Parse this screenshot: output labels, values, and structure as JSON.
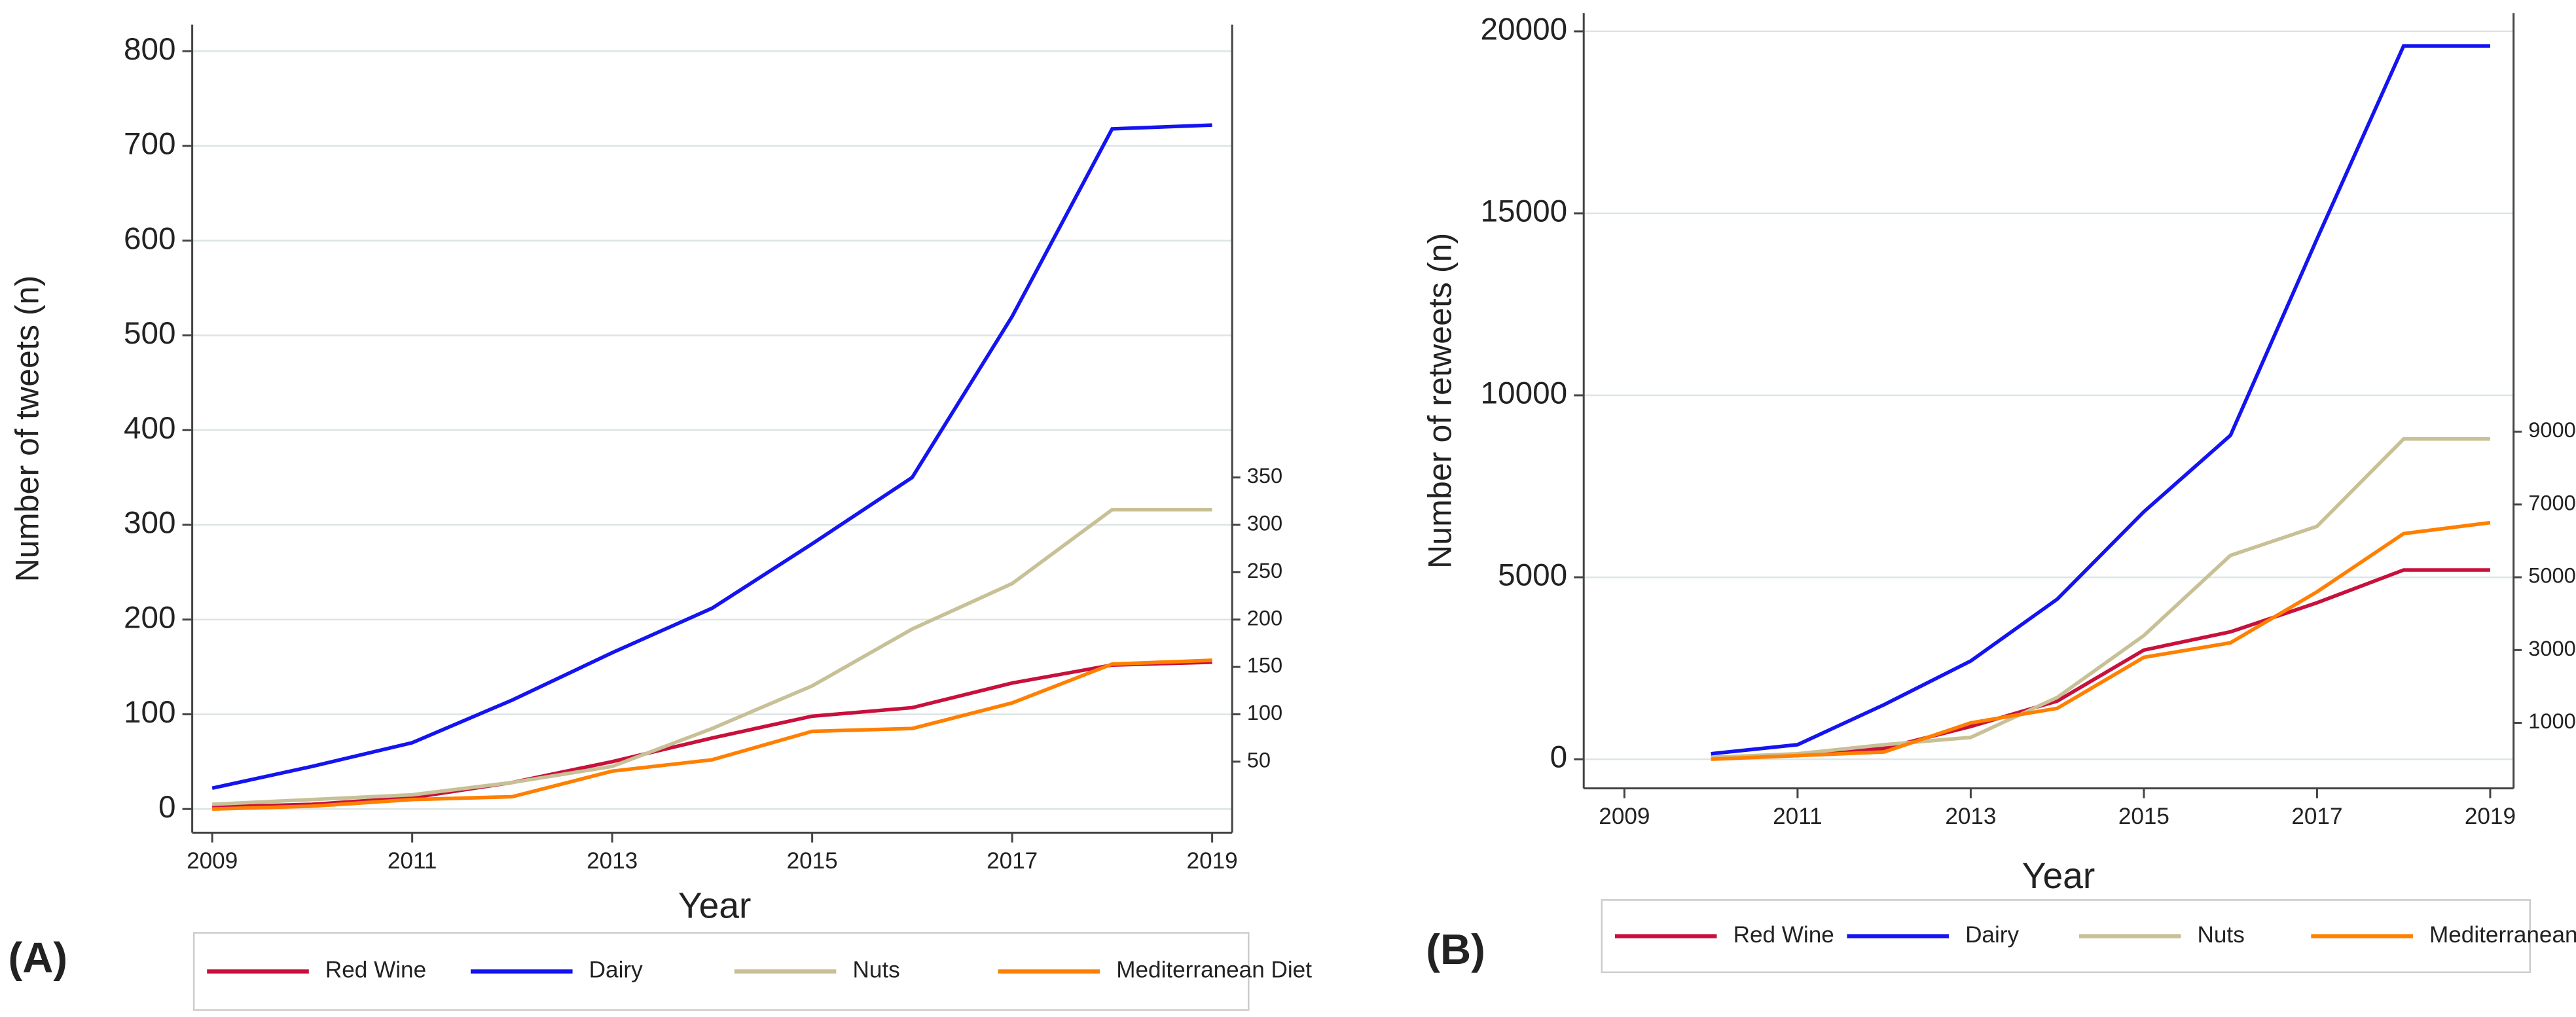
{
  "chart_data": [
    {
      "type": "line",
      "panel_label": "(A)",
      "xlabel": "Year",
      "ylabel": "Number of tweets (n)",
      "x": [
        2009,
        2010,
        2011,
        2012,
        2013,
        2014,
        2015,
        2016,
        2017,
        2018,
        2019
      ],
      "xlim": [
        2008.8,
        2019.2
      ],
      "xticks": [
        2009,
        2011,
        2013,
        2015,
        2017,
        2019
      ],
      "ylim": [
        -25,
        828
      ],
      "yticks": [
        0,
        100,
        200,
        300,
        400,
        500,
        600,
        700,
        800
      ],
      "y2lim": [
        -25,
        828
      ],
      "y2ticks": [
        50,
        100,
        150,
        200,
        250,
        300,
        350
      ],
      "grid": true,
      "legend": "bottom",
      "series": [
        {
          "name": "Red Wine",
          "color": "#c8103c",
          "values": [
            2,
            5,
            12,
            28,
            50,
            75,
            98,
            107,
            133,
            152,
            155
          ]
        },
        {
          "name": "Dairy",
          "color": "#1414f0",
          "values": [
            22,
            45,
            70,
            115,
            165,
            212,
            280,
            350,
            520,
            718,
            722
          ]
        },
        {
          "name": "Nuts",
          "color": "#c8c096",
          "values": [
            5,
            10,
            15,
            28,
            45,
            85,
            130,
            190,
            238,
            316,
            316
          ]
        },
        {
          "name": "Mediterranean Diet",
          "color": "#ff8000",
          "values": [
            0,
            3,
            10,
            13,
            40,
            52,
            82,
            85,
            112,
            153,
            157
          ]
        }
      ]
    },
    {
      "type": "line",
      "panel_label": "(B)",
      "xlabel": "Year",
      "ylabel": "Number of retweets (n)",
      "x": [
        2010,
        2011,
        2012,
        2013,
        2014,
        2015,
        2016,
        2017,
        2018,
        2019
      ],
      "xlim": [
        2008.53,
        2019.27
      ],
      "xticks": [
        2009,
        2011,
        2013,
        2015,
        2017,
        2019
      ],
      "ylim": [
        -800,
        20500
      ],
      "yticks": [
        0,
        5000,
        10000,
        15000,
        20000
      ],
      "y2lim": [
        -800,
        20500
      ],
      "y2ticks": [
        1000,
        3000,
        5000,
        7000,
        9000
      ],
      "grid": true,
      "legend": "bottom",
      "series": [
        {
          "name": "Red Wine",
          "color": "#c8103c",
          "values": [
            50,
            100,
            300,
            900,
            1600,
            3000,
            3500,
            4300,
            5200,
            5200
          ]
        },
        {
          "name": "Dairy",
          "color": "#1414f0",
          "values": [
            150,
            400,
            1500,
            2700,
            4400,
            6800,
            8900,
            14300,
            19600,
            19600
          ]
        },
        {
          "name": "Nuts",
          "color": "#c8c096",
          "values": [
            50,
            150,
            400,
            600,
            1700,
            3400,
            5600,
            6400,
            8800,
            8800
          ]
        },
        {
          "name": "Mediterranean Diet",
          "color": "#ff8000",
          "values": [
            0,
            100,
            200,
            1000,
            1400,
            2800,
            3200,
            4600,
            6200,
            6500
          ]
        }
      ]
    }
  ]
}
